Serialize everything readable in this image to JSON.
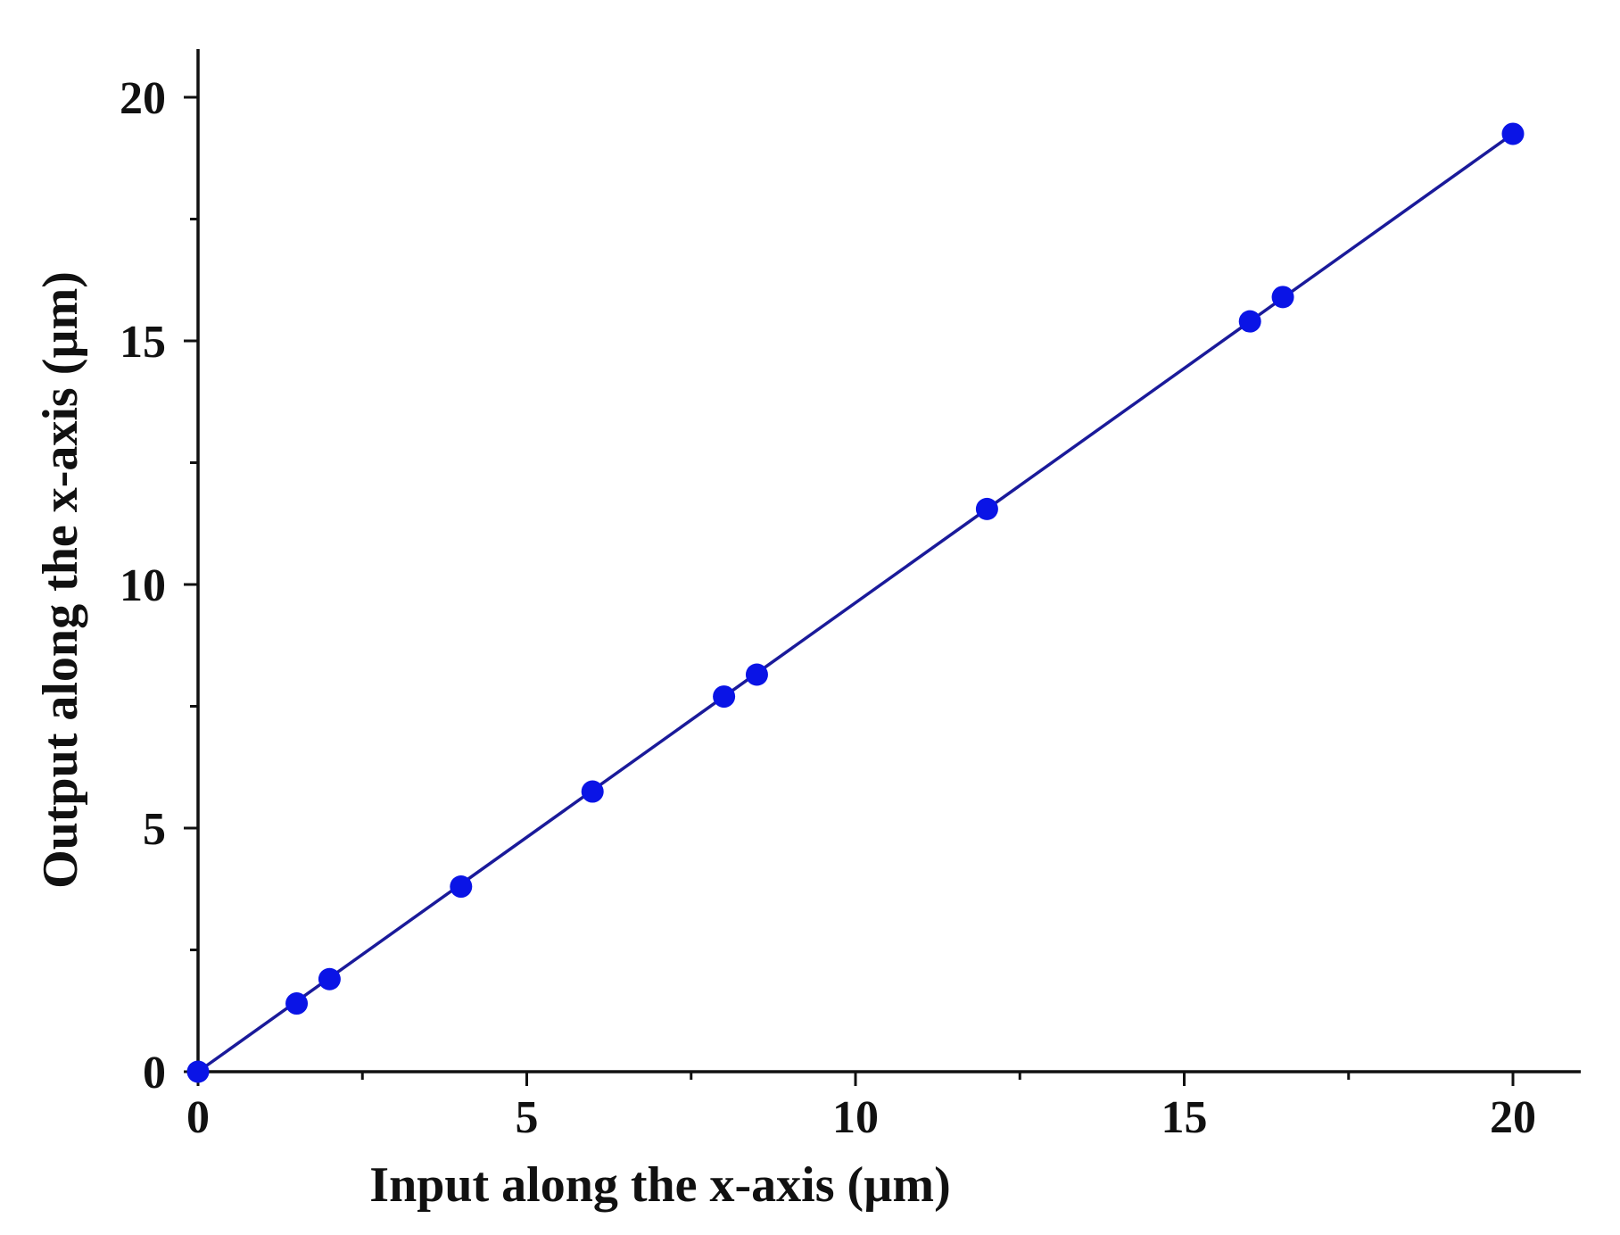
{
  "chart_data": {
    "type": "scatter",
    "title": "",
    "xlabel": "Input along the x-axis (µm)",
    "ylabel": "Output along the x-axis (µm)",
    "xlim": [
      0,
      21
    ],
    "ylim": [
      0,
      21
    ],
    "x_major_ticks": [
      0,
      5,
      10,
      15,
      20
    ],
    "y_major_ticks": [
      0,
      5,
      10,
      15,
      20
    ],
    "x_tick_labels": [
      "0",
      "5",
      "10",
      "15",
      "20"
    ],
    "y_tick_labels": [
      "0",
      "5",
      "10",
      "15",
      "20"
    ],
    "x_minor_ticks": [
      2.5,
      7.5,
      12.5,
      17.5
    ],
    "y_minor_ticks": [
      2.5,
      7.5,
      12.5,
      17.5
    ],
    "grid": false,
    "legend": "none",
    "series": [
      {
        "marker_color": "#0a14e6",
        "x": [
          0,
          1.5,
          2,
          4,
          6,
          8,
          8.5,
          12,
          16,
          16.5,
          20
        ],
        "y": [
          0,
          1.4,
          1.9,
          3.8,
          5.75,
          7.7,
          8.15,
          11.55,
          15.4,
          15.9,
          19.25
        ]
      }
    ],
    "fit_line": {
      "color": "#1a1a9a",
      "x": [
        0,
        20
      ],
      "y": [
        0,
        19.25
      ]
    }
  }
}
